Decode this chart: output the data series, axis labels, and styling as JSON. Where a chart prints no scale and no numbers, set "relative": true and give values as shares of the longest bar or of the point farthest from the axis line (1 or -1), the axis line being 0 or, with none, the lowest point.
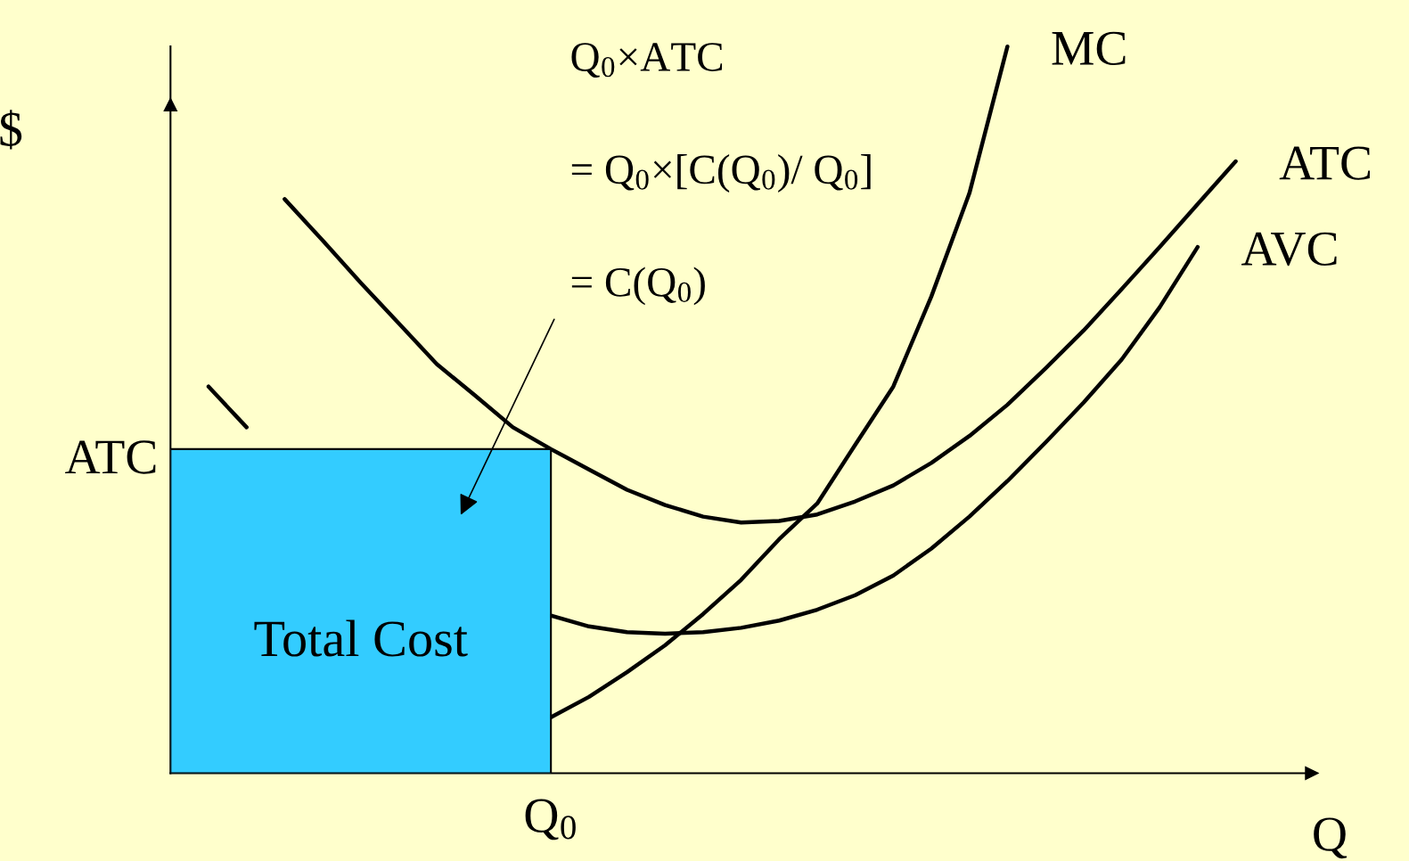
{
  "chart_data": {
    "type": "line",
    "relative": true,
    "ylabel": "$",
    "xlabel": "Q",
    "tick_labels": false,
    "line_style": "solid",
    "categories": [
      null,
      null,
      null,
      null,
      null,
      null,
      null,
      null,
      null,
      null,
      null,
      null,
      null,
      null,
      null,
      null,
      null,
      null,
      null,
      null,
      null,
      null,
      null,
      null,
      null,
      null,
      null,
      null,
      null,
      null
    ],
    "series": [
      {
        "name": "Total Cost",
        "type": "area",
        "color": "#33ccff",
        "values": [
          0.446,
          0.446,
          0.446,
          0.446,
          0.446,
          0.446,
          0.446,
          0.446,
          0.446,
          0.446,
          0.446,
          null,
          null,
          null,
          null,
          null,
          null,
          null,
          null,
          null,
          null,
          null,
          null,
          null,
          null,
          null,
          null,
          null,
          null,
          null
        ]
      },
      {
        "name": "ATC",
        "color": "#000000",
        "values": [
          null,
          null,
          null,
          0.79,
          0.733,
          0.675,
          0.619,
          0.563,
          0.52,
          0.476,
          0.446,
          0.418,
          0.39,
          0.369,
          0.353,
          0.345,
          0.347,
          0.356,
          0.374,
          0.396,
          0.427,
          0.464,
          0.507,
          0.557,
          0.609,
          0.666,
          0.724,
          0.783,
          0.842,
          null
        ]
      },
      {
        "name": "AVC",
        "color": "#000000",
        "values": [
          null,
          0.532,
          0.476,
          null,
          null,
          null,
          null,
          null,
          null,
          null,
          0.217,
          0.202,
          0.194,
          0.192,
          0.194,
          0.2,
          0.21,
          0.225,
          0.245,
          0.272,
          0.309,
          0.353,
          0.402,
          0.455,
          0.51,
          0.569,
          0.641,
          0.724,
          null,
          null
        ]
      },
      {
        "name": "MC",
        "color": "#000000",
        "values": [
          null,
          null,
          null,
          null,
          null,
          null,
          null,
          null,
          null,
          null,
          0.077,
          0.105,
          0.139,
          0.176,
          0.219,
          0.266,
          0.322,
          0.371,
          0.452,
          0.532,
          0.656,
          0.798,
          1.0,
          null,
          null,
          null,
          null,
          null,
          null,
          null
        ]
      }
    ],
    "annotations": [
      "ATC",
      "Q$_{0}$",
      "Q$_{0}$×ATC",
      "= Q$_{0}$×[C(Q$_{0}$)/ Q$_{0}$]",
      "= C(Q$_{0}$)"
    ]
  }
}
